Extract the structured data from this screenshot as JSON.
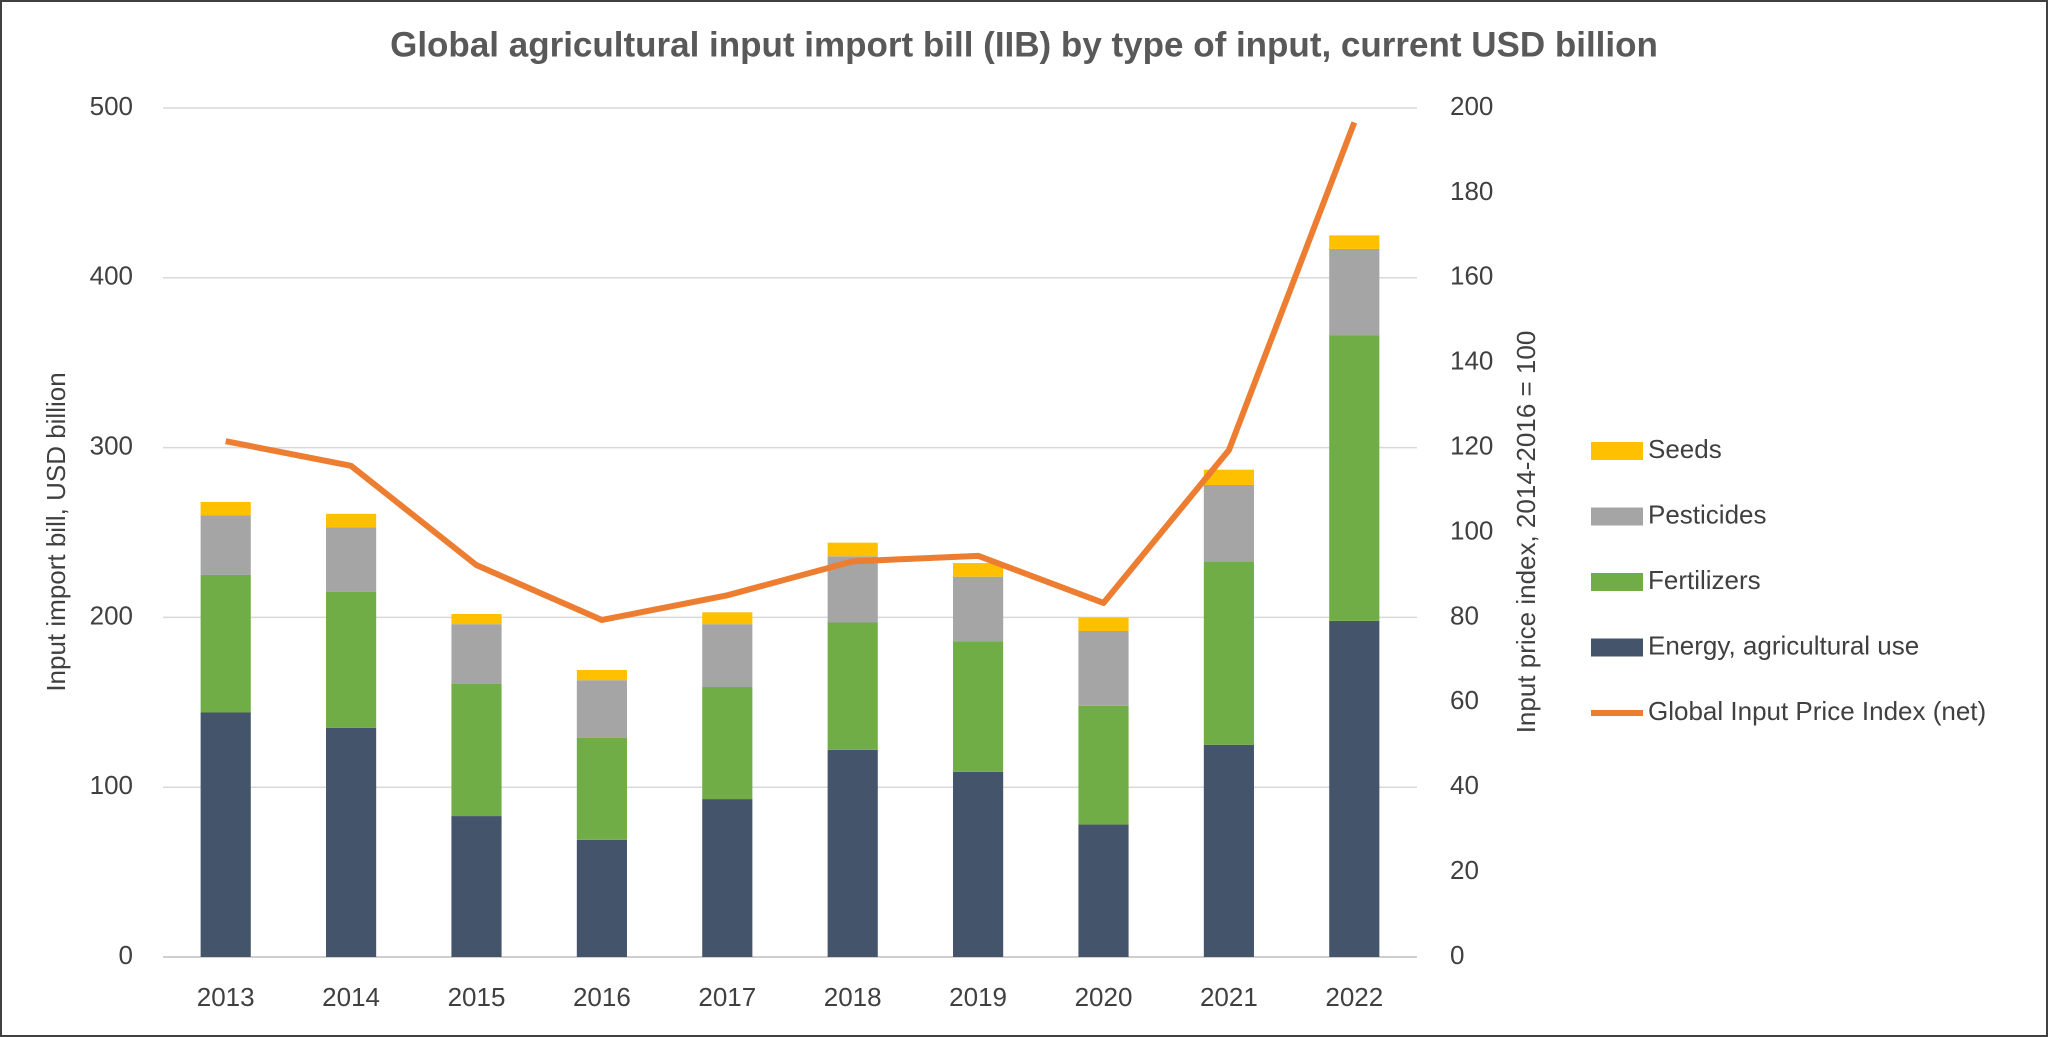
{
  "chart_data": {
    "type": "bar",
    "stacked": true,
    "title": "Global agricultural input import bill (IIB) by type of input, current USD billion",
    "y_label": "Input import bill, USD billion",
    "y2_label": "Input price index,  2014-2016 = 100",
    "categories": [
      "2013",
      "2014",
      "2015",
      "2016",
      "2017",
      "2018",
      "2019",
      "2020",
      "2021",
      "2022"
    ],
    "series": [
      {
        "name": "Energy, agricultural use",
        "color": "#44546a",
        "values": [
          144,
          135,
          83,
          69,
          93,
          122,
          109,
          78,
          125,
          198
        ]
      },
      {
        "name": "Fertilizers",
        "color": "#70ad47",
        "values": [
          81,
          80,
          78,
          60,
          66,
          75,
          77,
          70,
          108,
          168
        ]
      },
      {
        "name": "Pesticides",
        "color": "#a5a5a5",
        "values": [
          35,
          38,
          35,
          34,
          37,
          39,
          38,
          44,
          45,
          51
        ]
      },
      {
        "name": "Seeds",
        "color": "#ffc000",
        "values": [
          8,
          8,
          6,
          6,
          7,
          8,
          8,
          8,
          9,
          8
        ]
      },
      {
        "name": "Global Input Price Index (net)",
        "color": "#ed7d31",
        "type": "line",
        "axis": "y2",
        "values": [
          121.5,
          115.7,
          92.3,
          79.4,
          85.2,
          93.2,
          94.5,
          83.4,
          119.4,
          196.6
        ]
      }
    ],
    "ylim": [
      0,
      500
    ],
    "yticks": [
      0,
      100,
      200,
      300,
      400,
      500
    ],
    "y2lim": [
      0,
      200
    ],
    "y2ticks": [
      0,
      20,
      40,
      60,
      80,
      100,
      120,
      140,
      160,
      180,
      200
    ],
    "grid": true,
    "legend": "right"
  }
}
